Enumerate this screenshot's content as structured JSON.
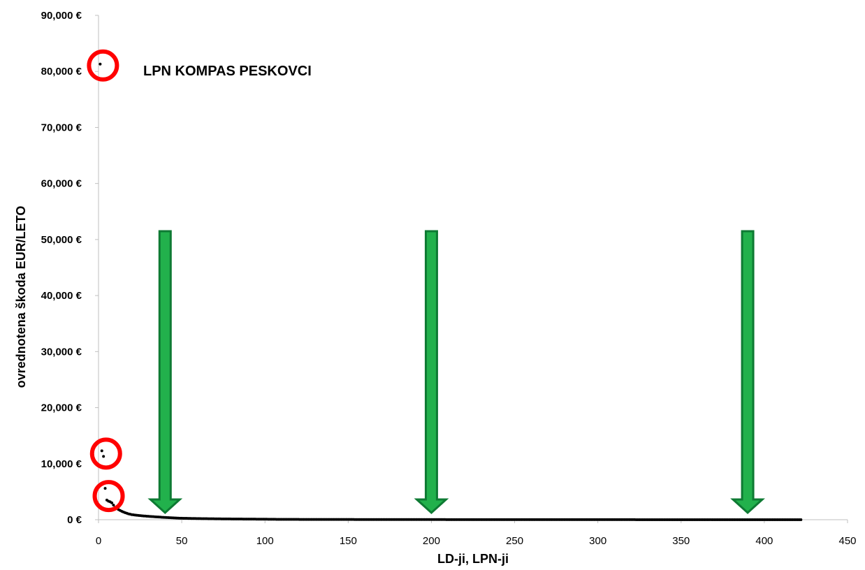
{
  "chart_data": {
    "type": "scatter",
    "xlabel": "LD-ji, LPN-ji",
    "ylabel": "ovrednotena škoda EUR/LETO",
    "xlim": [
      0,
      450
    ],
    "ylim": [
      0,
      90000
    ],
    "x_ticks": [
      "0",
      "50",
      "100",
      "150",
      "200",
      "250",
      "300",
      "350",
      "400",
      "450"
    ],
    "y_ticks": [
      "0 €",
      "10,000 €",
      "20,000 €",
      "30,000 €",
      "40,000 €",
      "50,000 €",
      "60,000 €",
      "70,000 €",
      "80,000 €",
      "90,000 €"
    ],
    "grid": false,
    "marker_color": "#000000",
    "highlight_color": "#ff0000",
    "arrow_color": "#22b14c",
    "annotation": "LPN KOMPAS PESKOVCI",
    "highlighted_points": [
      {
        "x": 1,
        "y": 81300
      },
      {
        "x": 2,
        "y": 12300
      },
      {
        "x": 3,
        "y": 11300
      },
      {
        "x": 4,
        "y": 5600
      }
    ],
    "arrows_at_x": [
      40,
      200,
      390
    ],
    "tail_points": [
      [
        5,
        3500
      ],
      [
        6,
        3300
      ],
      [
        7,
        3200
      ],
      [
        8,
        3000
      ],
      [
        9,
        2600
      ],
      [
        10,
        2200
      ],
      [
        12,
        1800
      ],
      [
        14,
        1500
      ],
      [
        16,
        1250
      ],
      [
        18,
        1050
      ],
      [
        20,
        900
      ],
      [
        23,
        800
      ],
      [
        26,
        700
      ],
      [
        30,
        600
      ],
      [
        35,
        500
      ],
      [
        40,
        400
      ],
      [
        45,
        320
      ],
      [
        50,
        260
      ],
      [
        60,
        200
      ],
      [
        70,
        160
      ],
      [
        80,
        130
      ],
      [
        90,
        110
      ],
      [
        100,
        90
      ],
      [
        110,
        60
      ],
      [
        150,
        40
      ],
      [
        200,
        25
      ],
      [
        250,
        15
      ],
      [
        300,
        10
      ],
      [
        350,
        5
      ],
      [
        400,
        2
      ],
      [
        422,
        0
      ]
    ]
  }
}
